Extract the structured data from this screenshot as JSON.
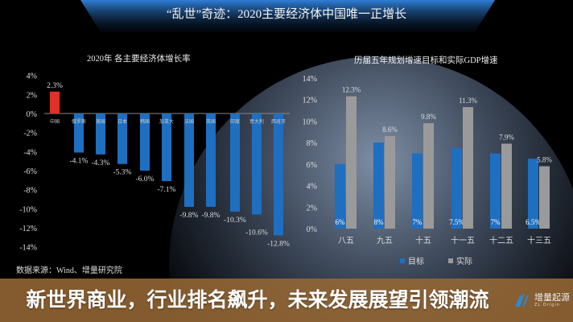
{
  "page_title": "“乱世”奇迹：2020主要经济体中国唯一正增长",
  "headline": "新世界商业，行业排名飙升，未来发展展望引领潮流",
  "source": "数据来源：Wind、增量研究院",
  "logo": {
    "name": "增量起源",
    "name_en": "ZL Origin"
  },
  "colors": {
    "china": "#e0302a",
    "others": "#1e6fc0",
    "target": "#1e6fc0",
    "actual": "#9a9a9a",
    "overlay": "#966834"
  },
  "chart_data": [
    {
      "type": "bar",
      "title": "2020年 各主要经济体增长率",
      "categories": [
        "中国",
        "俄罗斯",
        "美国",
        "日本",
        "韩国",
        "加拿大",
        "法国",
        "英国",
        "印度",
        "意大利",
        "西班牙"
      ],
      "values": [
        2.3,
        -4.1,
        -4.3,
        -5.3,
        -6.0,
        -7.1,
        -9.8,
        -9.8,
        -10.3,
        -10.6,
        -12.8
      ],
      "data_labels": [
        "2.3%",
        "-4.1%",
        "-4.3%",
        "-5.3%",
        "-6.0%",
        "-7.1%",
        "-9.8%",
        "-9.8%",
        "-10.3%",
        "-10.6%",
        "-12.8%"
      ],
      "ylim": [
        -14,
        4
      ],
      "yticks": [
        "4%",
        "2%",
        "0%",
        "-2%",
        "-4%",
        "-6%",
        "-8%",
        "-10%",
        "-12%",
        "-14%"
      ],
      "grid": false
    },
    {
      "type": "bar",
      "title": "历届五年规划增速目标和实际GDP增速",
      "categories": [
        "八五",
        "九五",
        "十五",
        "十一五",
        "十二五",
        "十三五"
      ],
      "series": [
        {
          "name": "目标",
          "values": [
            6,
            8,
            7,
            7.5,
            7,
            6.5
          ],
          "data_labels": [
            "6%",
            "8%",
            "7%",
            "7.5%",
            "7%",
            "6.5%"
          ]
        },
        {
          "name": "实际",
          "values": [
            12.3,
            8.6,
            9.8,
            11.3,
            7.9,
            5.8
          ],
          "data_labels": [
            "12.3%",
            "8.6%",
            "9.8%",
            "11.3%",
            "7.9%",
            "5.8%"
          ]
        }
      ],
      "ylim": [
        0,
        14
      ],
      "yticks": [
        "14%",
        "12%",
        "10%",
        "8%",
        "6%",
        "4%",
        "2%",
        "0%"
      ],
      "legend": "bottom",
      "grid": false
    }
  ]
}
